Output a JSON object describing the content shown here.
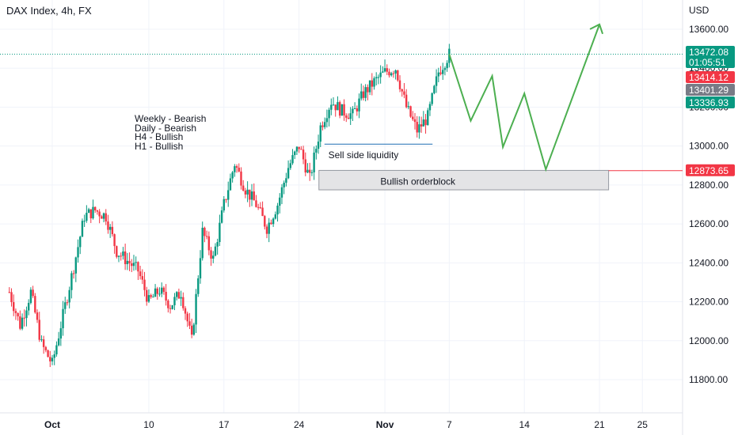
{
  "header": {
    "title": "DAX Index, 4h, FX"
  },
  "notes": [
    "Weekly - Bearish",
    "Daily - Bearish",
    "H4 - Bullish",
    "H1 - Bullish"
  ],
  "annotations": {
    "liquidity_label": "Sell side liquidity",
    "orderblock_label": "Bullish orderblock"
  },
  "colors": {
    "up": "#089981",
    "down": "#f23645",
    "projection": "#4caf50",
    "level": "#f23645",
    "grid": "#f0f3fa"
  },
  "price_tags": [
    {
      "label": "13472.08",
      "sub": "01:05:51",
      "color": "#089981"
    },
    {
      "label": "13414.12",
      "color": "#f23645"
    },
    {
      "label": "13401.29",
      "color": "#787b86"
    },
    {
      "label": "13336.93",
      "color": "#089981"
    },
    {
      "label": "12873.65",
      "color": "#f23645"
    }
  ],
  "chart_data": {
    "type": "candlestick",
    "title": "DAX Index, 4h, FX",
    "currency": "USD",
    "y_ticks": [
      11800,
      12000,
      12200,
      12400,
      12600,
      12800,
      13000,
      13200,
      13400,
      13600
    ],
    "x_ticks": [
      "Oct",
      "10",
      "17",
      "24",
      "Nov",
      "7",
      "14",
      "21",
      "25"
    ],
    "ylim": [
      11640,
      13740
    ],
    "current_price": 13472.08,
    "countdown": "01:05:51",
    "levels": [
      {
        "name": "orderblock",
        "low": 12775,
        "high": 12875,
        "label": "Bullish orderblock"
      },
      {
        "name": "sell_side_liquidity",
        "value": 13010,
        "label": "Sell side liquidity"
      },
      {
        "name": "level_line",
        "value": 12873.65
      }
    ],
    "projection_path": [
      {
        "date": "Nov 7",
        "price": 13472
      },
      {
        "date": "Nov 9",
        "price": 13130
      },
      {
        "date": "Nov 11",
        "price": 13360
      },
      {
        "date": "Nov 12",
        "price": 12995
      },
      {
        "date": "Nov 14",
        "price": 13270
      },
      {
        "date": "Nov 16",
        "price": 12880
      },
      {
        "date": "Nov 21",
        "price": 13625
      },
      {
        "date": "Nov 21",
        "price": 13590
      }
    ],
    "close_path": [
      {
        "date": "Sep 27",
        "price": 12250
      },
      {
        "date": "Sep 28",
        "price": 12080
      },
      {
        "date": "Sep 29",
        "price": 12250
      },
      {
        "date": "Sep 30",
        "price": 11980
      },
      {
        "date": "Oct 1",
        "price": 11880
      },
      {
        "date": "Oct 3",
        "price": 12380
      },
      {
        "date": "Oct 4",
        "price": 12640
      },
      {
        "date": "Oct 5",
        "price": 12670
      },
      {
        "date": "Oct 6",
        "price": 12640
      },
      {
        "date": "Oct 7",
        "price": 12460
      },
      {
        "date": "Oct 9",
        "price": 12360
      },
      {
        "date": "Oct 10",
        "price": 12200
      },
      {
        "date": "Oct 11",
        "price": 12260
      },
      {
        "date": "Oct 12",
        "price": 12180
      },
      {
        "date": "Oct 13",
        "price": 12250
      },
      {
        "date": "Oct 14",
        "price": 12000
      },
      {
        "date": "Oct 15",
        "price": 12560
      },
      {
        "date": "Oct 16",
        "price": 12420
      },
      {
        "date": "Oct 17",
        "price": 12700
      },
      {
        "date": "Oct 18",
        "price": 12910
      },
      {
        "date": "Oct 19",
        "price": 12780
      },
      {
        "date": "Oct 20",
        "price": 12700
      },
      {
        "date": "Oct 21",
        "price": 12580
      },
      {
        "date": "Oct 22",
        "price": 12700
      },
      {
        "date": "Oct 23",
        "price": 12890
      },
      {
        "date": "Oct 24",
        "price": 13000
      },
      {
        "date": "Oct 25",
        "price": 12830
      },
      {
        "date": "Oct 26",
        "price": 13100
      },
      {
        "date": "Oct 27",
        "price": 13230
      },
      {
        "date": "Oct 28",
        "price": 13180
      },
      {
        "date": "Oct 29",
        "price": 13160
      },
      {
        "date": "Oct 30",
        "price": 13270
      },
      {
        "date": "Oct 31",
        "price": 13330
      },
      {
        "date": "Nov 1",
        "price": 13380
      },
      {
        "date": "Nov 2",
        "price": 13400
      },
      {
        "date": "Nov 3",
        "price": 13200
      },
      {
        "date": "Nov 4",
        "price": 13080
      },
      {
        "date": "Nov 5",
        "price": 13150
      },
      {
        "date": "Nov 6",
        "price": 13380
      },
      {
        "date": "Nov 7",
        "price": 13472
      }
    ]
  }
}
